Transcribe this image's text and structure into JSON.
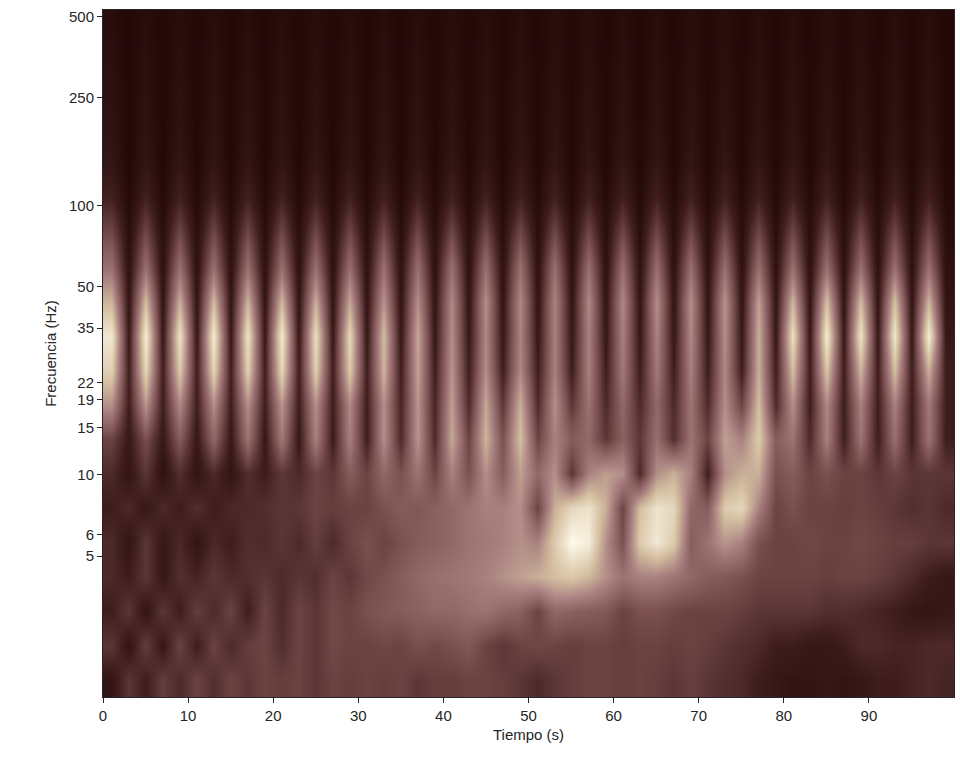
{
  "chart_data": {
    "type": "heatmap",
    "xlabel": "Tiempo (s)",
    "ylabel": "Frecuencia (Hz)",
    "log": "y",
    "xlim": [
      0,
      100
    ],
    "ylim": [
      1.5,
      530
    ],
    "xticks": [
      0,
      10,
      20,
      30,
      40,
      50,
      60,
      70,
      80,
      90
    ],
    "yticks": [
      5,
      6,
      10,
      15,
      19,
      22,
      35,
      50,
      100,
      250,
      500
    ],
    "zlim": [
      0,
      1
    ],
    "x_bins": [
      0,
      2,
      4,
      6,
      8,
      10,
      12,
      14,
      16,
      18,
      20,
      22,
      24,
      26,
      28,
      30,
      32,
      34,
      36,
      38,
      40,
      42,
      44,
      46,
      48,
      50,
      52,
      54,
      56,
      58,
      60,
      62,
      64,
      66,
      68,
      70,
      72,
      74,
      76,
      78,
      80,
      82,
      84,
      86,
      88,
      90,
      92,
      94,
      96,
      98,
      100
    ],
    "y_bins": [
      1.5,
      2.01,
      2.7,
      3.62,
      4.85,
      6.5,
      8.72,
      11.7,
      15.7,
      21,
      28.2,
      37.8,
      50.7,
      68,
      91.2,
      122,
      164,
      220,
      295,
      396,
      530
    ],
    "z": [
      [
        0.1,
        0.25,
        0.15,
        0.28,
        0.2,
        0.3,
        0.22,
        0.3,
        0.25,
        0.3,
        0.28,
        0.3,
        0.25,
        0.3,
        0.28,
        0.3,
        0.28,
        0.3,
        0.25,
        0.28,
        0.28,
        0.3,
        0.3,
        0.28,
        0.25,
        0.2,
        0.25,
        0.28,
        0.3,
        0.3,
        0.28,
        0.3,
        0.28,
        0.25,
        0.28,
        0.25,
        0.22,
        0.2,
        0.15,
        0.12,
        0.1,
        0.1,
        0.12,
        0.1,
        0.12,
        0.15,
        0.15,
        0.18,
        0.2,
        0.18
      ],
      [
        0.25,
        0.1,
        0.28,
        0.12,
        0.3,
        0.15,
        0.3,
        0.2,
        0.28,
        0.3,
        0.22,
        0.3,
        0.25,
        0.32,
        0.3,
        0.3,
        0.32,
        0.3,
        0.35,
        0.32,
        0.35,
        0.38,
        0.3,
        0.25,
        0.3,
        0.32,
        0.3,
        0.28,
        0.3,
        0.3,
        0.28,
        0.3,
        0.3,
        0.28,
        0.3,
        0.28,
        0.25,
        0.22,
        0.2,
        0.15,
        0.15,
        0.12,
        0.12,
        0.15,
        0.2,
        0.2,
        0.18,
        0.18,
        0.2,
        0.2
      ],
      [
        0.15,
        0.25,
        0.1,
        0.25,
        0.15,
        0.28,
        0.2,
        0.3,
        0.15,
        0.3,
        0.2,
        0.3,
        0.25,
        0.32,
        0.3,
        0.35,
        0.38,
        0.4,
        0.42,
        0.45,
        0.45,
        0.48,
        0.5,
        0.45,
        0.42,
        0.3,
        0.45,
        0.42,
        0.4,
        0.38,
        0.3,
        0.35,
        0.35,
        0.32,
        0.3,
        0.3,
        0.3,
        0.28,
        0.25,
        0.25,
        0.25,
        0.25,
        0.22,
        0.22,
        0.2,
        0.18,
        0.15,
        0.12,
        0.1,
        0.12
      ],
      [
        0.2,
        0.15,
        0.25,
        0.12,
        0.22,
        0.18,
        0.25,
        0.2,
        0.22,
        0.25,
        0.2,
        0.25,
        0.22,
        0.3,
        0.25,
        0.32,
        0.35,
        0.4,
        0.45,
        0.48,
        0.5,
        0.52,
        0.55,
        0.6,
        0.65,
        0.7,
        0.75,
        0.78,
        0.72,
        0.6,
        0.5,
        0.55,
        0.55,
        0.5,
        0.45,
        0.4,
        0.38,
        0.35,
        0.3,
        0.3,
        0.3,
        0.3,
        0.28,
        0.3,
        0.3,
        0.28,
        0.25,
        0.2,
        0.15,
        0.12
      ],
      [
        0.2,
        0.1,
        0.25,
        0.12,
        0.2,
        0.1,
        0.2,
        0.15,
        0.22,
        0.2,
        0.25,
        0.2,
        0.28,
        0.2,
        0.3,
        0.35,
        0.3,
        0.35,
        0.4,
        0.42,
        0.45,
        0.5,
        0.52,
        0.55,
        0.6,
        0.55,
        0.8,
        1.0,
        0.95,
        0.6,
        0.35,
        0.8,
        0.92,
        0.8,
        0.4,
        0.5,
        0.62,
        0.55,
        0.35,
        0.3,
        0.3,
        0.32,
        0.3,
        0.3,
        0.32,
        0.3,
        0.28,
        0.28,
        0.25,
        0.25
      ],
      [
        0.15,
        0.2,
        0.12,
        0.2,
        0.15,
        0.22,
        0.15,
        0.2,
        0.2,
        0.22,
        0.25,
        0.25,
        0.3,
        0.28,
        0.3,
        0.3,
        0.35,
        0.4,
        0.38,
        0.42,
        0.45,
        0.5,
        0.55,
        0.55,
        0.6,
        0.3,
        0.7,
        0.85,
        0.9,
        0.7,
        0.3,
        0.75,
        0.9,
        0.85,
        0.45,
        0.4,
        0.8,
        0.85,
        0.55,
        0.3,
        0.35,
        0.3,
        0.3,
        0.28,
        0.3,
        0.28,
        0.25,
        0.22,
        0.25,
        0.2
      ],
      [
        0.2,
        0.1,
        0.25,
        0.08,
        0.22,
        0.1,
        0.2,
        0.1,
        0.22,
        0.15,
        0.25,
        0.2,
        0.3,
        0.25,
        0.4,
        0.3,
        0.45,
        0.35,
        0.5,
        0.3,
        0.55,
        0.35,
        0.6,
        0.4,
        0.65,
        0.45,
        0.6,
        0.25,
        0.55,
        0.65,
        0.6,
        0.2,
        0.6,
        0.7,
        0.55,
        0.15,
        0.6,
        0.7,
        0.7,
        0.35,
        0.4,
        0.3,
        0.35,
        0.3,
        0.3,
        0.25,
        0.3,
        0.25,
        0.25,
        0.25
      ],
      [
        0.3,
        0.12,
        0.35,
        0.12,
        0.4,
        0.12,
        0.45,
        0.12,
        0.5,
        0.12,
        0.52,
        0.12,
        0.55,
        0.14,
        0.55,
        0.15,
        0.6,
        0.2,
        0.62,
        0.2,
        0.68,
        0.3,
        0.72,
        0.35,
        0.75,
        0.3,
        0.55,
        0.4,
        0.45,
        0.25,
        0.42,
        0.25,
        0.48,
        0.22,
        0.5,
        0.3,
        0.65,
        0.55,
        0.8,
        0.4,
        0.5,
        0.2,
        0.55,
        0.15,
        0.5,
        0.15,
        0.48,
        0.15,
        0.5,
        0.15
      ],
      [
        0.6,
        0.15,
        0.62,
        0.15,
        0.58,
        0.15,
        0.6,
        0.15,
        0.6,
        0.15,
        0.62,
        0.15,
        0.6,
        0.15,
        0.58,
        0.15,
        0.6,
        0.18,
        0.62,
        0.18,
        0.65,
        0.2,
        0.68,
        0.25,
        0.7,
        0.2,
        0.6,
        0.25,
        0.5,
        0.2,
        0.45,
        0.2,
        0.45,
        0.2,
        0.5,
        0.2,
        0.6,
        0.3,
        0.75,
        0.2,
        0.6,
        0.15,
        0.58,
        0.15,
        0.55,
        0.15,
        0.55,
        0.15,
        0.52,
        0.15
      ],
      [
        0.82,
        0.15,
        0.85,
        0.15,
        0.8,
        0.15,
        0.84,
        0.15,
        0.82,
        0.15,
        0.85,
        0.15,
        0.82,
        0.15,
        0.8,
        0.15,
        0.72,
        0.15,
        0.66,
        0.15,
        0.62,
        0.15,
        0.6,
        0.15,
        0.58,
        0.15,
        0.55,
        0.15,
        0.55,
        0.15,
        0.52,
        0.15,
        0.52,
        0.15,
        0.55,
        0.15,
        0.58,
        0.15,
        0.7,
        0.15,
        0.75,
        0.15,
        0.78,
        0.15,
        0.72,
        0.15,
        0.75,
        0.15,
        0.7,
        0.15
      ],
      [
        0.92,
        0.12,
        0.95,
        0.12,
        0.9,
        0.12,
        0.94,
        0.12,
        0.9,
        0.12,
        0.93,
        0.12,
        0.88,
        0.12,
        0.85,
        0.12,
        0.75,
        0.12,
        0.68,
        0.12,
        0.6,
        0.12,
        0.58,
        0.12,
        0.56,
        0.12,
        0.55,
        0.12,
        0.55,
        0.12,
        0.55,
        0.12,
        0.56,
        0.12,
        0.58,
        0.12,
        0.6,
        0.12,
        0.7,
        0.12,
        0.88,
        0.12,
        0.94,
        0.12,
        0.9,
        0.12,
        0.92,
        0.12,
        0.95,
        0.12
      ],
      [
        0.72,
        0.1,
        0.75,
        0.1,
        0.7,
        0.1,
        0.74,
        0.1,
        0.72,
        0.1,
        0.73,
        0.1,
        0.7,
        0.1,
        0.68,
        0.1,
        0.62,
        0.1,
        0.6,
        0.1,
        0.58,
        0.1,
        0.6,
        0.1,
        0.58,
        0.1,
        0.56,
        0.1,
        0.58,
        0.1,
        0.58,
        0.1,
        0.6,
        0.1,
        0.6,
        0.1,
        0.62,
        0.1,
        0.66,
        0.1,
        0.72,
        0.1,
        0.76,
        0.1,
        0.74,
        0.1,
        0.76,
        0.1,
        0.72,
        0.1
      ],
      [
        0.48,
        0.08,
        0.48,
        0.08,
        0.48,
        0.08,
        0.48,
        0.08,
        0.48,
        0.08,
        0.48,
        0.08,
        0.48,
        0.08,
        0.48,
        0.08,
        0.48,
        0.08,
        0.48,
        0.08,
        0.48,
        0.08,
        0.48,
        0.08,
        0.48,
        0.08,
        0.48,
        0.08,
        0.48,
        0.08,
        0.48,
        0.08,
        0.48,
        0.08,
        0.48,
        0.08,
        0.48,
        0.08,
        0.48,
        0.08,
        0.48,
        0.08,
        0.48,
        0.08,
        0.48,
        0.08,
        0.48,
        0.08,
        0.48,
        0.08
      ],
      [
        0.32,
        0.06,
        0.32,
        0.06,
        0.32,
        0.06,
        0.32,
        0.06,
        0.32,
        0.06,
        0.32,
        0.06,
        0.32,
        0.06,
        0.32,
        0.06,
        0.32,
        0.06,
        0.32,
        0.06,
        0.32,
        0.06,
        0.32,
        0.06,
        0.32,
        0.06,
        0.32,
        0.06,
        0.32,
        0.06,
        0.32,
        0.06,
        0.32,
        0.06,
        0.32,
        0.06,
        0.32,
        0.06,
        0.32,
        0.06,
        0.32,
        0.06,
        0.32,
        0.06,
        0.32,
        0.06,
        0.32,
        0.06,
        0.32,
        0.06
      ],
      [
        0.17,
        0.04,
        0.17,
        0.04,
        0.17,
        0.04,
        0.17,
        0.04,
        0.17,
        0.04,
        0.17,
        0.04,
        0.17,
        0.04,
        0.17,
        0.04,
        0.17,
        0.04,
        0.17,
        0.04,
        0.17,
        0.04,
        0.17,
        0.04,
        0.17,
        0.04,
        0.17,
        0.04,
        0.17,
        0.04,
        0.17,
        0.04,
        0.17,
        0.04,
        0.17,
        0.04,
        0.17,
        0.04,
        0.17,
        0.04,
        0.17,
        0.04,
        0.17,
        0.04,
        0.17,
        0.04,
        0.17,
        0.04,
        0.17,
        0.04
      ],
      [
        0.11,
        0.03,
        0.11,
        0.03,
        0.11,
        0.03,
        0.11,
        0.03,
        0.11,
        0.03,
        0.11,
        0.03,
        0.11,
        0.03,
        0.11,
        0.03,
        0.11,
        0.03,
        0.11,
        0.03,
        0.11,
        0.03,
        0.11,
        0.03,
        0.11,
        0.03,
        0.11,
        0.03,
        0.11,
        0.03,
        0.11,
        0.03,
        0.11,
        0.03,
        0.11,
        0.03,
        0.11,
        0.03,
        0.11,
        0.03,
        0.11,
        0.03,
        0.11,
        0.03,
        0.11,
        0.03,
        0.11,
        0.03,
        0.11,
        0.03
      ],
      [
        0.09,
        0.03,
        0.09,
        0.03,
        0.09,
        0.03,
        0.09,
        0.03,
        0.09,
        0.03,
        0.09,
        0.03,
        0.09,
        0.03,
        0.09,
        0.03,
        0.09,
        0.03,
        0.09,
        0.03,
        0.09,
        0.03,
        0.09,
        0.03,
        0.09,
        0.03,
        0.09,
        0.03,
        0.09,
        0.03,
        0.09,
        0.03,
        0.09,
        0.03,
        0.09,
        0.03,
        0.09,
        0.03,
        0.09,
        0.03,
        0.09,
        0.03,
        0.09,
        0.03,
        0.09,
        0.03,
        0.09,
        0.03,
        0.09,
        0.03
      ],
      [
        0.08,
        0.03,
        0.08,
        0.03,
        0.08,
        0.03,
        0.08,
        0.03,
        0.08,
        0.03,
        0.08,
        0.03,
        0.08,
        0.03,
        0.08,
        0.03,
        0.08,
        0.03,
        0.08,
        0.03,
        0.08,
        0.03,
        0.08,
        0.03,
        0.08,
        0.03,
        0.08,
        0.03,
        0.08,
        0.03,
        0.08,
        0.03,
        0.08,
        0.03,
        0.08,
        0.03,
        0.08,
        0.03,
        0.08,
        0.03,
        0.08,
        0.03,
        0.08,
        0.03,
        0.08,
        0.03,
        0.08,
        0.03,
        0.08,
        0.03
      ],
      [
        0.07,
        0.03,
        0.07,
        0.03,
        0.07,
        0.03,
        0.07,
        0.03,
        0.07,
        0.03,
        0.07,
        0.03,
        0.07,
        0.03,
        0.07,
        0.03,
        0.07,
        0.03,
        0.07,
        0.03,
        0.07,
        0.03,
        0.07,
        0.03,
        0.07,
        0.03,
        0.07,
        0.03,
        0.07,
        0.03,
        0.07,
        0.03,
        0.07,
        0.03,
        0.07,
        0.03,
        0.07,
        0.03,
        0.07,
        0.03,
        0.07,
        0.03,
        0.07,
        0.03,
        0.07,
        0.03,
        0.07,
        0.03,
        0.07,
        0.03
      ],
      [
        0.06,
        0.03,
        0.06,
        0.03,
        0.06,
        0.03,
        0.06,
        0.03,
        0.06,
        0.03,
        0.06,
        0.03,
        0.06,
        0.03,
        0.06,
        0.03,
        0.06,
        0.03,
        0.06,
        0.03,
        0.06,
        0.03,
        0.06,
        0.03,
        0.06,
        0.03,
        0.06,
        0.03,
        0.06,
        0.03,
        0.06,
        0.03,
        0.06,
        0.03,
        0.06,
        0.03,
        0.06,
        0.03,
        0.06,
        0.03,
        0.06,
        0.03,
        0.06,
        0.03,
        0.06,
        0.03,
        0.06,
        0.03,
        0.06,
        0.03
      ]
    ]
  }
}
